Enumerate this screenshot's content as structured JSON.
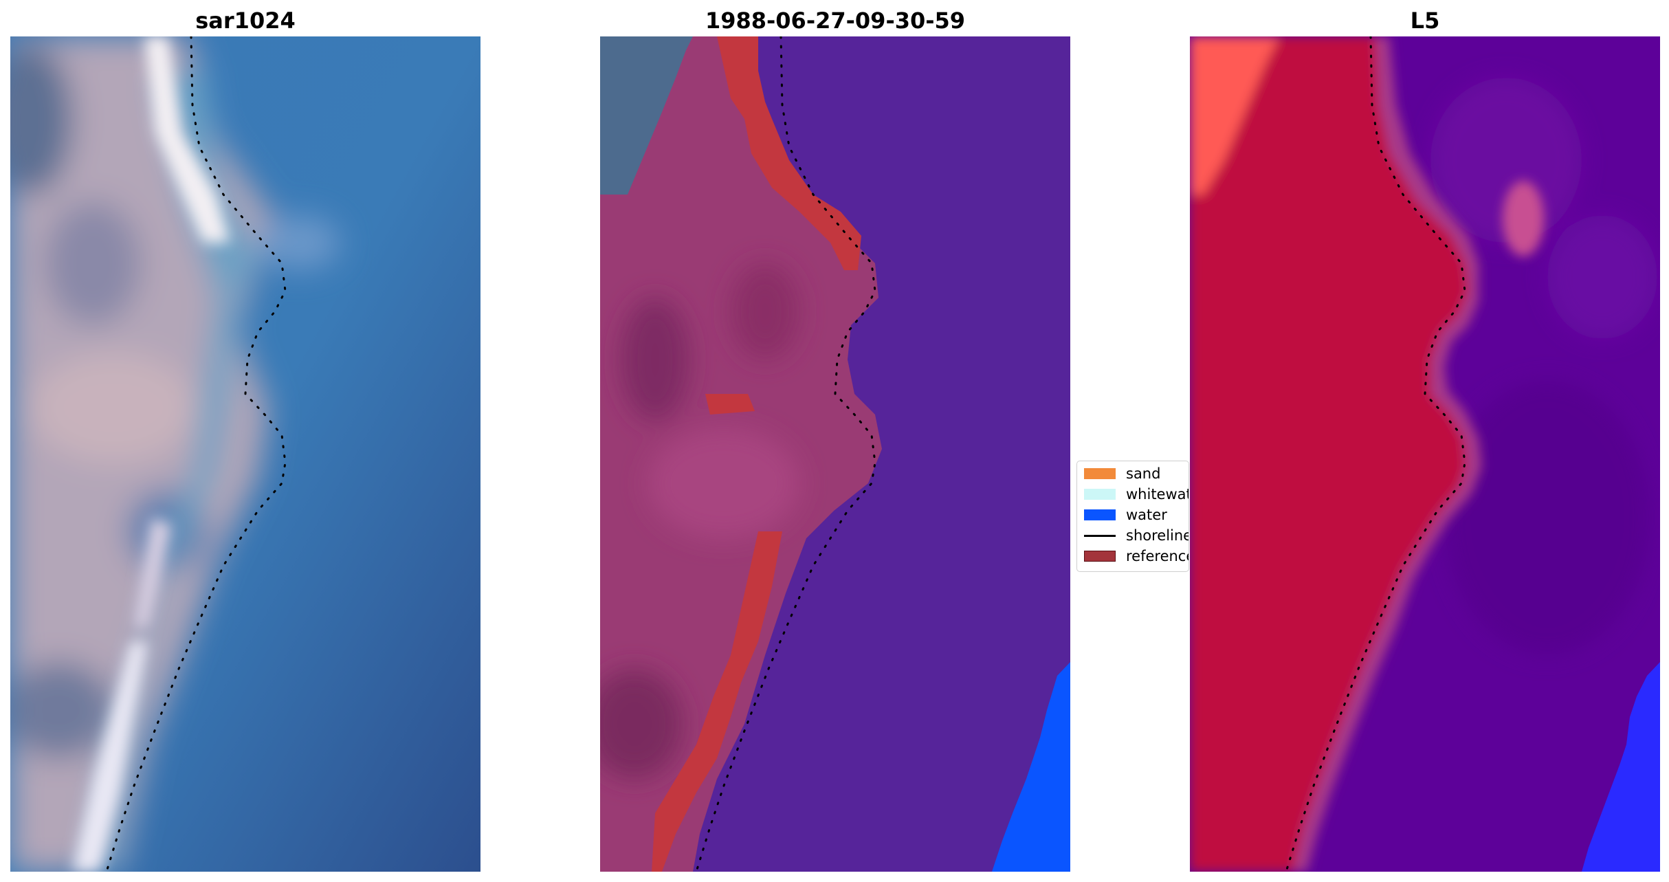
{
  "panels": [
    {
      "title": "sar1024"
    },
    {
      "title": "1988-06-27-09-30-59"
    },
    {
      "title": "L5"
    }
  ],
  "legend": {
    "items": [
      {
        "label": "sand",
        "color": "#f28a3a",
        "kind": "patch"
      },
      {
        "label": "whitewater",
        "color": "#ccf7f7",
        "kind": "patch"
      },
      {
        "label": "water",
        "color": "#0a55ff",
        "kind": "patch"
      },
      {
        "label": "shoreline",
        "color": "#000000",
        "kind": "line"
      },
      {
        "label": "reference",
        "color": "#a3343b",
        "kind": "patch"
      }
    ]
  },
  "colors": {
    "rgb_water": "#3a78b5",
    "rgb_land": "#b7a9b8",
    "class_water_overlay": "#57239a",
    "class_land_overlay": "#9a3a73",
    "class_sand": "#c2363d",
    "class_water_blue": "#0a55ff",
    "index_land": "#c0093f",
    "index_water": "#5b0098",
    "index_bright": "#ff5a55",
    "index_blue": "#2a2aff",
    "shoreline": "#000000"
  }
}
